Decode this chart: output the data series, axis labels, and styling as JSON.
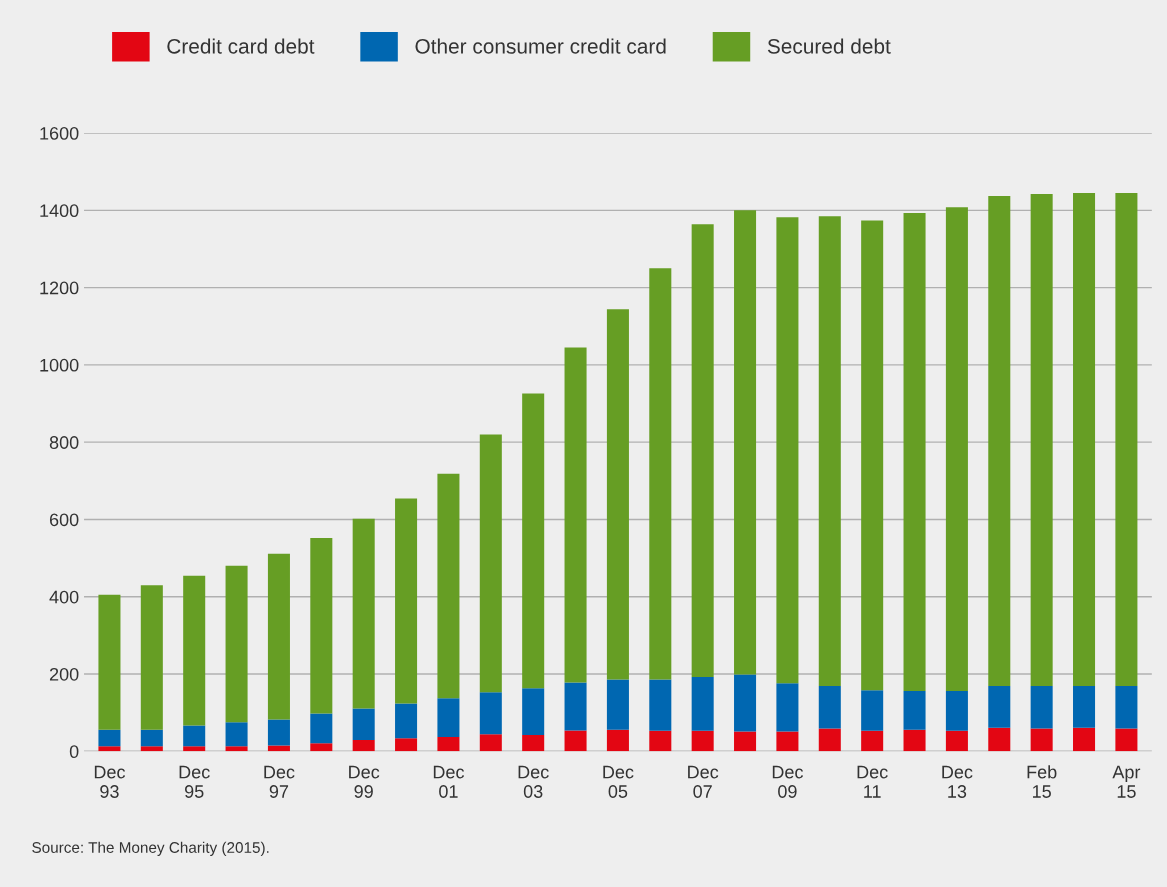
{
  "chart_data": {
    "type": "bar",
    "stacked": true,
    "categories": [
      "Dec\n93",
      null,
      "Dec\n95",
      null,
      "Dec\n97",
      null,
      "Dec\n99",
      null,
      "Dec\n01",
      null,
      "Dec\n03",
      null,
      "Dec\n05",
      null,
      "Dec\n07",
      null,
      "Dec\n09",
      null,
      "Dec\n11",
      null,
      "Dec\n13",
      null,
      "Feb\n15",
      null,
      "Apr\n15"
    ],
    "series": [
      {
        "name": "Credit card debt",
        "color": "#e30613",
        "values": [
          13,
          13,
          13,
          13,
          15,
          21,
          29,
          34,
          37,
          44,
          42,
          54,
          56,
          53,
          53,
          51,
          51,
          59,
          53,
          56,
          53,
          61,
          59,
          61,
          59
        ]
      },
      {
        "name": "Other consumer credit card",
        "color": "#0067b1",
        "values": [
          43,
          43,
          54,
          62,
          67,
          77,
          82,
          90,
          100,
          109,
          121,
          124,
          130,
          133,
          139,
          148,
          125,
          110,
          105,
          100,
          103,
          108,
          110,
          108,
          110
        ]
      },
      {
        "name": "Secured debt",
        "color": "#669e24",
        "values": [
          349,
          374,
          387,
          405,
          429,
          454,
          491,
          530,
          581,
          667,
          763,
          867,
          958,
          1064,
          1172,
          1201,
          1206,
          1216,
          1216,
          1237,
          1252,
          1268,
          1273,
          1276,
          1276
        ]
      }
    ],
    "ylim": [
      0,
      1600
    ],
    "yticks": [
      0,
      200,
      400,
      600,
      800,
      1000,
      1200,
      1400,
      1600
    ],
    "grid": "y",
    "legend": "top left",
    "annotations": [
      "Source: The Money Charity (2015)."
    ]
  }
}
